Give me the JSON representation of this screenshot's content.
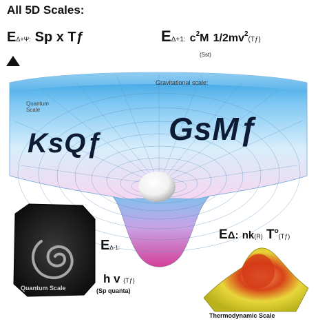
{
  "header": {
    "all_scales": "All 5D Scales:",
    "e_symbol": "E",
    "e_subscript": "Δ+Ψ:",
    "formula": "Sp x Tƒ"
  },
  "top_equation": {
    "e_symbol": "E",
    "subscript": "Δ+1:",
    "c": "c",
    "c_exp": "2",
    "mass": "M",
    "kinetic": "1/2mv",
    "kinetic_exp": "2",
    "paren_tf": "(Tƒ)",
    "under_label": "(Sst)"
  },
  "labels": {
    "gravitational_scale": "Gravitational scale:",
    "quantum_scale": "Quantum Scale",
    "ksqf": "KsQƒ",
    "gsmf": "GsMƒ",
    "quantum_scale_inset": "Quantum Scale",
    "thermodynamic_scale": "Thermodynamic Scale"
  },
  "quantum_equation": {
    "e_symbol": "E",
    "subscript": "Δ-1:",
    "hv": "h v",
    "paren_tf": "(Tƒ)",
    "under_label": "(Sp quanta)"
  },
  "thermo_equation": {
    "e_symbol": "E",
    "delta": "Δ:",
    "nk": "nk",
    "paren_r": "(R)",
    "t": "T",
    "t_sup": "o",
    "paren_tf": "(Tƒ)"
  },
  "colors": {
    "funnel_sky": "#bfe3fa",
    "funnel_pink": "#e98ec7",
    "thermo_yellow": "#e6e03a",
    "thermo_red": "#d84a1a",
    "quantum_dark": "#1a1a1a"
  },
  "icons": [
    "up-arrow-icon"
  ]
}
